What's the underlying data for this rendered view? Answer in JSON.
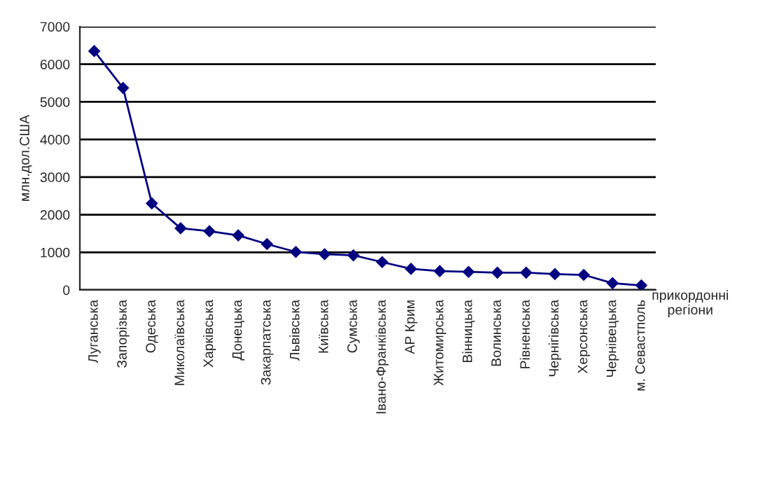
{
  "chart_data": {
    "type": "line",
    "xlabel": "прикордонні регіони",
    "ylabel": "млн.дол.США",
    "categories": [
      "Луганська",
      "Запорізька",
      "Одеська",
      "Миколаївська",
      "Харківська",
      "Донецька",
      "Закарпатська",
      "Львівська",
      "Київська",
      "Сумська",
      "Івано-Франківська",
      "АР Крим",
      "Житомирська",
      "Вінницька",
      "Волинська",
      "Рівненська",
      "Чернігівська",
      "Херсонська",
      "Чернівецька",
      "м. Севастполь"
    ],
    "series": [
      {
        "color": "#000080",
        "values": [
          6350,
          5370,
          2300,
          1640,
          1560,
          1450,
          1220,
          1010,
          950,
          920,
          740,
          560,
          500,
          480,
          460,
          460,
          420,
          400,
          180,
          120
        ]
      }
    ],
    "ylim": [
      0,
      7000
    ],
    "yticks": [
      0,
      1000,
      2000,
      3000,
      4000,
      5000,
      6000,
      7000
    ],
    "grid": "y",
    "marker": "diamond",
    "line_style": "solid"
  }
}
